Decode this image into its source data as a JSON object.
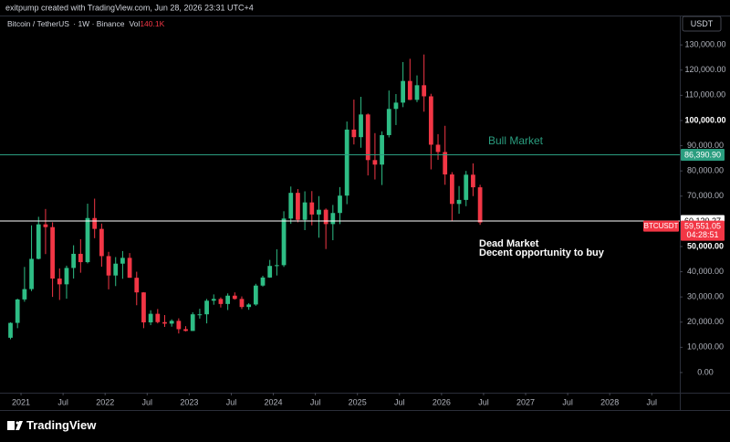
{
  "attribution": "exitpump created with TradingView.com, Jun 28, 2026 23:31 UTC+4",
  "footer": {
    "brand": "TradingView"
  },
  "chart_data": {
    "type": "candlestick",
    "symbol": "Bitcoin / TetherUS",
    "interval": "1W",
    "exchange": "Binance",
    "volume_label": "Vol",
    "volume": "140.1K",
    "currency": "USDT",
    "up_color": "#2ebd85",
    "down_color": "#f23645",
    "x": [
      "2020-11",
      "2020-12",
      "2021-01",
      "2021-02",
      "2021-03",
      "2021-04",
      "2021-05",
      "2021-06",
      "2021-07",
      "2021-08",
      "2021-09",
      "2021-10",
      "2021-11",
      "2021-12",
      "2022-01",
      "2022-02",
      "2022-03",
      "2022-04",
      "2022-05",
      "2022-06",
      "2022-07",
      "2022-08",
      "2022-09",
      "2022-10",
      "2022-11",
      "2022-12",
      "2023-01",
      "2023-02",
      "2023-03",
      "2023-04",
      "2023-05",
      "2023-06",
      "2023-07",
      "2023-08",
      "2023-09",
      "2023-10",
      "2023-11",
      "2023-12",
      "2024-01",
      "2024-02",
      "2024-03",
      "2024-04",
      "2024-05",
      "2024-06",
      "2024-07",
      "2024-08",
      "2024-09",
      "2024-10",
      "2024-11",
      "2024-12",
      "2025-01",
      "2025-02",
      "2025-03",
      "2025-04",
      "2025-05",
      "2025-06",
      "2025-07",
      "2025-08",
      "2025-09",
      "2025-10",
      "2025-11",
      "2025-12",
      "2026-01",
      "2026-02",
      "2026-03",
      "2026-04",
      "2026-05",
      "2026-06"
    ],
    "open": [
      13800,
      19700,
      29000,
      33100,
      45100,
      58800,
      57700,
      37300,
      35000,
      41500,
      47100,
      43800,
      61300,
      57000,
      46200,
      38500,
      43200,
      45500,
      37600,
      31800,
      19900,
      23300,
      20000,
      19400,
      20500,
      17200,
      16500,
      23100,
      23100,
      28500,
      29200,
      27200,
      30500,
      29200,
      26000,
      27000,
      34500,
      37700,
      42300,
      42600,
      61100,
      71300,
      60600,
      67500,
      62700,
      64600,
      58900,
      63300,
      70200,
      96400,
      93400,
      102400,
      84300,
      82500,
      94200,
      104600,
      107100,
      115700,
      108200,
      114000,
      109600,
      90400,
      87500,
      78600,
      66900,
      68500,
      78500,
      73500
    ],
    "high": [
      19900,
      29300,
      41900,
      58400,
      61800,
      64900,
      59600,
      41300,
      42400,
      50500,
      52900,
      67000,
      69000,
      59100,
      47900,
      45800,
      48200,
      47400,
      40000,
      31900,
      24700,
      25200,
      22800,
      21100,
      21500,
      18400,
      23900,
      25300,
      29200,
      31000,
      29800,
      31400,
      31800,
      30200,
      27500,
      35200,
      38400,
      44700,
      48900,
      64000,
      73800,
      72800,
      71900,
      72000,
      70000,
      65100,
      66500,
      73600,
      99600,
      108300,
      109400,
      102800,
      95000,
      95700,
      111900,
      110500,
      123200,
      124500,
      117900,
      126200,
      110600,
      94600,
      97900,
      79500,
      74000,
      80000,
      83000,
      74500
    ],
    "low": [
      13200,
      17600,
      28100,
      32300,
      44900,
      47000,
      30000,
      28800,
      29300,
      37300,
      39600,
      43300,
      53300,
      42000,
      33000,
      34300,
      37200,
      37600,
      26700,
      17600,
      18800,
      19500,
      18100,
      18200,
      15500,
      16300,
      16500,
      21400,
      19500,
      26900,
      25800,
      24800,
      28900,
      25200,
      24900,
      26500,
      34100,
      37600,
      38500,
      41900,
      59000,
      59600,
      56500,
      58400,
      53500,
      49000,
      52500,
      58900,
      66800,
      90500,
      89200,
      78200,
      76600,
      74400,
      93300,
      98200,
      105300,
      108100,
      107300,
      103500,
      80600,
      84400,
      74500,
      60000,
      63000,
      66000,
      70000,
      58600
    ],
    "close": [
      19700,
      29000,
      33100,
      45100,
      58800,
      57700,
      37300,
      35000,
      41500,
      47100,
      43800,
      61300,
      57000,
      46200,
      38500,
      43200,
      45500,
      37600,
      31800,
      19900,
      23300,
      20000,
      19400,
      20500,
      17200,
      16500,
      23100,
      23100,
      28500,
      29200,
      27200,
      30500,
      29200,
      26000,
      27000,
      34500,
      37700,
      42300,
      42600,
      61100,
      71300,
      60600,
      67500,
      62700,
      64600,
      58900,
      63300,
      70200,
      96400,
      93400,
      102400,
      84300,
      82500,
      94200,
      104600,
      107100,
      115700,
      108200,
      114000,
      109600,
      90400,
      87500,
      78600,
      66900,
      68500,
      78500,
      73500,
      59551.05
    ],
    "xlim": [
      "2020-10",
      "2028-11"
    ],
    "xticks": [
      {
        "value": "2021-01",
        "label": "2021"
      },
      {
        "value": "2021-07",
        "label": "Jul"
      },
      {
        "value": "2022-01",
        "label": "2022"
      },
      {
        "value": "2022-07",
        "label": "Jul"
      },
      {
        "value": "2023-01",
        "label": "2023"
      },
      {
        "value": "2023-07",
        "label": "Jul"
      },
      {
        "value": "2024-01",
        "label": "2024"
      },
      {
        "value": "2024-07",
        "label": "Jul"
      },
      {
        "value": "2025-01",
        "label": "2025"
      },
      {
        "value": "2025-07",
        "label": "Jul"
      },
      {
        "value": "2026-01",
        "label": "2026"
      },
      {
        "value": "2026-07",
        "label": "Jul"
      },
      {
        "value": "2027-01",
        "label": "2027"
      },
      {
        "value": "2027-07",
        "label": "Jul"
      },
      {
        "value": "2028-01",
        "label": "2028"
      },
      {
        "value": "2028-07",
        "label": "Jul"
      }
    ],
    "ylim": [
      -8000,
      141300
    ],
    "yticks": [
      {
        "value": 0,
        "label": "0.00"
      },
      {
        "value": 10000,
        "label": "10,000.00"
      },
      {
        "value": 20000,
        "label": "20,000.00"
      },
      {
        "value": 30000,
        "label": "30,000.00"
      },
      {
        "value": 40000,
        "label": "40,000.00"
      },
      {
        "value": 50000,
        "label": "50,000.00"
      },
      {
        "value": 70000,
        "label": "70,000.00"
      },
      {
        "value": 80000,
        "label": "80,000.00"
      },
      {
        "value": 90000,
        "label": "90,000.00"
      },
      {
        "value": 100000,
        "label": "100,000.00"
      },
      {
        "value": 110000,
        "label": "110,000.00"
      },
      {
        "value": 120000,
        "label": "120,000.00"
      },
      {
        "value": 130000,
        "label": "130,000.00"
      }
    ],
    "levels": [
      {
        "value": 86390.9,
        "label": "86,390.90",
        "color": "#2a9d7f",
        "text_color": "#ffffff"
      },
      {
        "value": 60120.27,
        "label": "60,120.27",
        "color": "#ffffff",
        "text_color": "#000000"
      }
    ],
    "last_price": {
      "name": "BTCUSDT",
      "value": 59551.05,
      "label": "59,551.05",
      "countdown": "04:28:51",
      "color": "#f23645"
    },
    "annotations": [
      {
        "text": "Bull Market",
        "color": "#2a9d7f"
      },
      {
        "text": "Dead Market",
        "color": "#ffffff"
      },
      {
        "text": "Decent opportunity to buy",
        "color": "#ffffff"
      }
    ]
  }
}
